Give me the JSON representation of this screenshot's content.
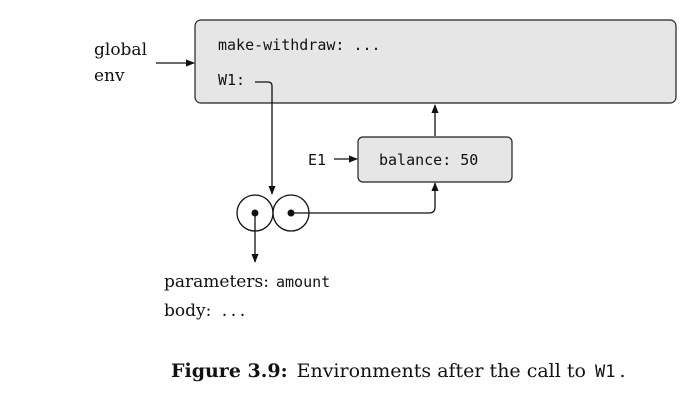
{
  "global_env": {
    "label_line1": "global",
    "label_line2": "env",
    "bindings": [
      "make-withdraw: ...",
      "W1:"
    ]
  },
  "frame_e1": {
    "label": "E1",
    "bindings": [
      "balance: 50"
    ]
  },
  "procedure": {
    "parameters_label": "parameters:",
    "parameters_value": "amount",
    "body_label": "body:",
    "body_value": "..."
  },
  "caption": {
    "label": "Figure 3.9:",
    "text": "Environments after the call to",
    "code": "W1",
    "end": "."
  }
}
